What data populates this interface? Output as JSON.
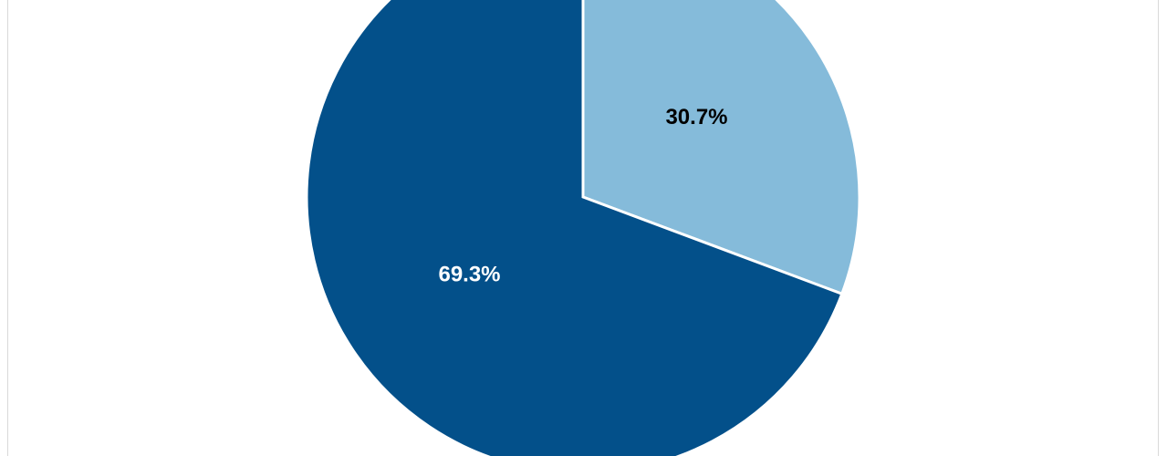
{
  "chart_data": {
    "type": "pie",
    "values": [
      30.7,
      69.3
    ],
    "value_labels": [
      "30.7%",
      "69.3%"
    ],
    "colors": [
      "#85bbda",
      "#03508a"
    ],
    "label_colors": [
      "#000000",
      "#ffffff"
    ]
  }
}
